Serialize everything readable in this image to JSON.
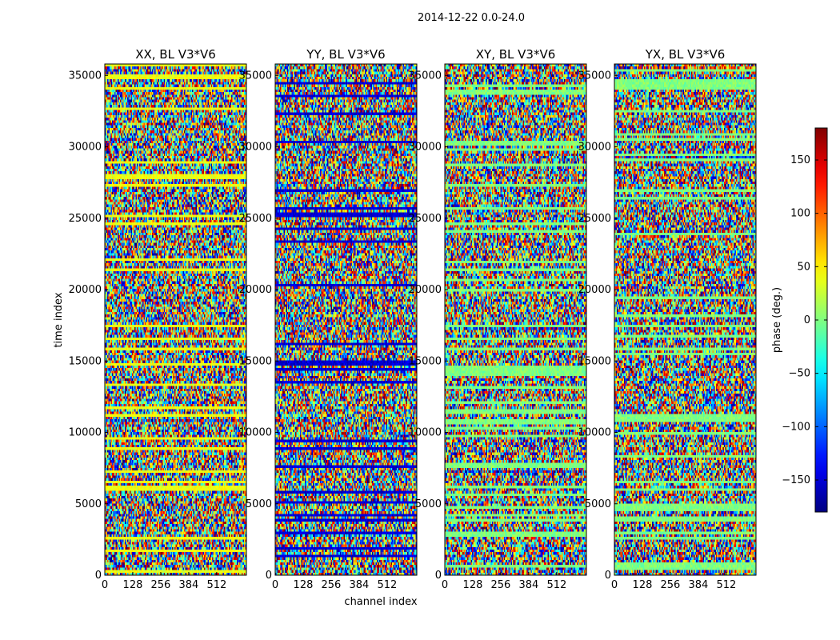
{
  "chart_data": {
    "type": "heatmap",
    "suptitle": "2014-12-22 0.0-24.0",
    "xlabel": "channel index",
    "ylabel": "time index",
    "xlim": [
      0,
      648
    ],
    "ylim": [
      0,
      35800
    ],
    "xticks": [
      0,
      128,
      256,
      384,
      512
    ],
    "yticks": [
      0,
      5000,
      10000,
      15000,
      20000,
      25000,
      30000,
      35000
    ],
    "colormap": "jet",
    "colorbar": {
      "label": "phase (deg.)",
      "range": [
        -180,
        180
      ],
      "ticks": [
        -150,
        -100,
        -50,
        0,
        50,
        100,
        150
      ]
    },
    "panels": [
      {
        "title": "XX, BL V3*V6",
        "polarization": "XX",
        "offset_phase": 40
      },
      {
        "title": "YY, BL V3*V6",
        "polarization": "YY",
        "offset_phase": -150
      },
      {
        "title": "XY, BL V3*V6",
        "polarization": "XY",
        "offset_phase": 0
      },
      {
        "title": "YX, BL V3*V6",
        "polarization": "YX",
        "offset_phase": 0
      }
    ]
  }
}
